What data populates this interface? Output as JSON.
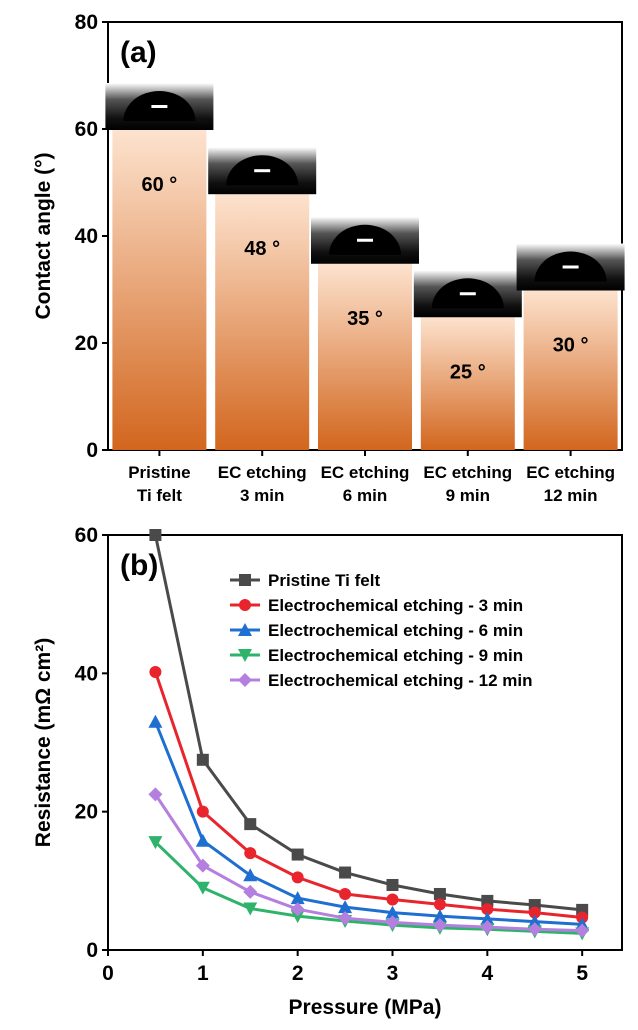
{
  "chart_data": [
    {
      "type": "bar",
      "annotation": "(a)",
      "y_label": "Contact angle (°)",
      "categories": [
        "Pristine\nTi felt",
        "EC etching\n3 min",
        "EC etching\n6 min",
        "EC etching\n9 min",
        "EC etching\n12 min"
      ],
      "values": [
        60,
        48,
        35,
        25,
        30
      ],
      "value_labels": [
        "60 °",
        "48 °",
        "35 °",
        "25 °",
        "30 °"
      ],
      "colors": [
        "#fde3cf",
        "#d2661e"
      ],
      "ylim": [
        0,
        80
      ],
      "yticks": [
        0,
        20,
        40,
        60,
        80
      ]
    },
    {
      "type": "line",
      "annotation": "(b)",
      "x_label": "Pressure (MPa)",
      "y_label": "Resistance (mΩ cm²)",
      "x": [
        0.5,
        1,
        1.5,
        2,
        2.5,
        3,
        3.5,
        4,
        4.5,
        5
      ],
      "series": [
        {
          "name": "Pristine Ti felt",
          "color": "#4a4a4a",
          "marker": "square",
          "values": [
            60,
            27.5,
            18.2,
            13.8,
            11.2,
            9.4,
            8.1,
            7.1,
            6.5,
            5.8
          ]
        },
        {
          "name": "Electrochemical etching - 3 min",
          "color": "#e8252d",
          "marker": "circle",
          "values": [
            40.2,
            20,
            14,
            10.5,
            8.1,
            7.3,
            6.6,
            5.9,
            5.4,
            4.7
          ]
        },
        {
          "name": "Electrochemical etching - 6 min",
          "color": "#1f6fd0",
          "marker": "triangle-up",
          "values": [
            33,
            15.8,
            10.8,
            7.5,
            6.2,
            5.4,
            4.9,
            4.5,
            4.1,
            3.7
          ]
        },
        {
          "name": "Electrochemical etching - 9 min",
          "color": "#2fb36b",
          "marker": "triangle-down",
          "values": [
            15.6,
            9,
            6,
            4.9,
            4.2,
            3.6,
            3.2,
            3.0,
            2.7,
            2.4
          ]
        },
        {
          "name": "Electrochemical etching - 12 min",
          "color": "#b57fe0",
          "marker": "diamond",
          "values": [
            22.5,
            12.2,
            8.4,
            5.9,
            4.6,
            4.0,
            3.6,
            3.3,
            3.0,
            2.8
          ]
        }
      ],
      "xlim": [
        0,
        5.42
      ],
      "xticks": [
        0,
        1,
        2,
        3,
        4,
        5
      ],
      "ylim": [
        0,
        60
      ],
      "yticks": [
        0,
        20,
        40,
        60
      ],
      "legend": "upper center"
    }
  ]
}
